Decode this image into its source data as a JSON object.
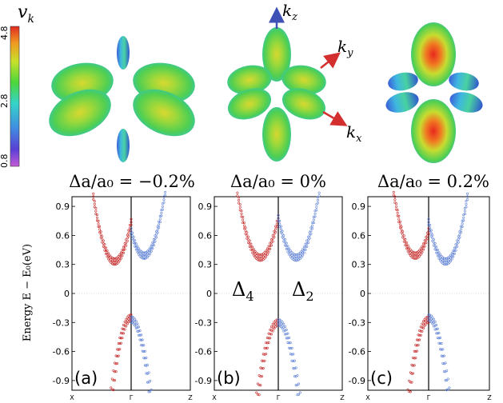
{
  "colorbar": {
    "label": "v",
    "label_sub": "k",
    "ticks": [
      "4.8",
      "2.8",
      "0.8"
    ]
  },
  "axes_labels": {
    "kz": "k",
    "kz_sub": "z",
    "ky": "k",
    "ky_sub": "y",
    "kx": "k",
    "kx_sub": "x"
  },
  "strain_titles": [
    "Δa/a₀ = −0.2%",
    "Δa/a₀ = 0%",
    "Δa/a₀ = 0.2%"
  ],
  "panel_labels": [
    "(a)",
    "(b)",
    "(c)"
  ],
  "valley_labels": {
    "left": "Δ",
    "left_sub": "4",
    "right": "Δ",
    "right_sub": "2"
  },
  "ylabel": "Energy E − E₀(eV)",
  "colors": {
    "delta4": "#c62828",
    "delta2": "#5c7fd6",
    "arrow_red": "#d32f2f",
    "arrow_blue": "#3f51b5"
  },
  "chart_data": [
    {
      "type": "scatter",
      "panel": "(a)",
      "title": "Δa/a₀ = −0.2%",
      "xlabel": "",
      "ylabel": "Energy E − E₀(eV)",
      "x_ticks": [
        "X",
        "Γ",
        "Z"
      ],
      "y_ticks": [
        "0.9",
        "0.6",
        "0.3",
        "0",
        "-0.3",
        "-0.6",
        "-0.9"
      ],
      "ylim": [
        -1.0,
        1.0
      ],
      "xlim": [
        -1,
        1
      ],
      "series": [
        {
          "color": "#c62828",
          "cond_min": {
            "k": -0.28,
            "E": 0.3
          },
          "val_max": {
            "k": 0.0,
            "E": -0.22
          }
        },
        {
          "color": "#5c7fd6",
          "cond_min": {
            "k": 0.22,
            "E": 0.36
          },
          "val_max": {
            "k": 0.0,
            "E": -0.24
          }
        }
      ]
    },
    {
      "type": "scatter",
      "panel": "(b)",
      "title": "Δa/a₀ = 0%",
      "xlabel": "",
      "ylabel": "",
      "x_ticks": [
        "X",
        "Γ",
        "Z"
      ],
      "y_ticks": [
        "0.9",
        "0.6",
        "0.3",
        "0",
        "-0.3",
        "-0.6",
        "-0.9"
      ],
      "ylim": [
        -1.0,
        1.0
      ],
      "xlim": [
        -1,
        1
      ],
      "series": [
        {
          "color": "#c62828",
          "cond_min": {
            "k": -0.28,
            "E": 0.34
          },
          "val_max": {
            "k": 0.0,
            "E": -0.27
          }
        },
        {
          "color": "#5c7fd6",
          "cond_min": {
            "k": 0.28,
            "E": 0.34
          },
          "val_max": {
            "k": 0.0,
            "E": -0.27
          }
        }
      ]
    },
    {
      "type": "scatter",
      "panel": "(c)",
      "title": "Δa/a₀ = 0.2%",
      "xlabel": "",
      "ylabel": "",
      "x_ticks": [
        "X",
        "Γ",
        "Z"
      ],
      "y_ticks": [
        "0.9",
        "0.6",
        "0.3",
        "0",
        "-0.3",
        "-0.6",
        "-0.9"
      ],
      "ylim": [
        -1.0,
        1.0
      ],
      "xlim": [
        -1,
        1
      ],
      "series": [
        {
          "color": "#c62828",
          "cond_min": {
            "k": -0.22,
            "E": 0.36
          },
          "val_max": {
            "k": 0.0,
            "E": -0.24
          }
        },
        {
          "color": "#5c7fd6",
          "cond_min": {
            "k": 0.28,
            "E": 0.3
          },
          "val_max": {
            "k": 0.0,
            "E": -0.22
          }
        }
      ]
    }
  ]
}
